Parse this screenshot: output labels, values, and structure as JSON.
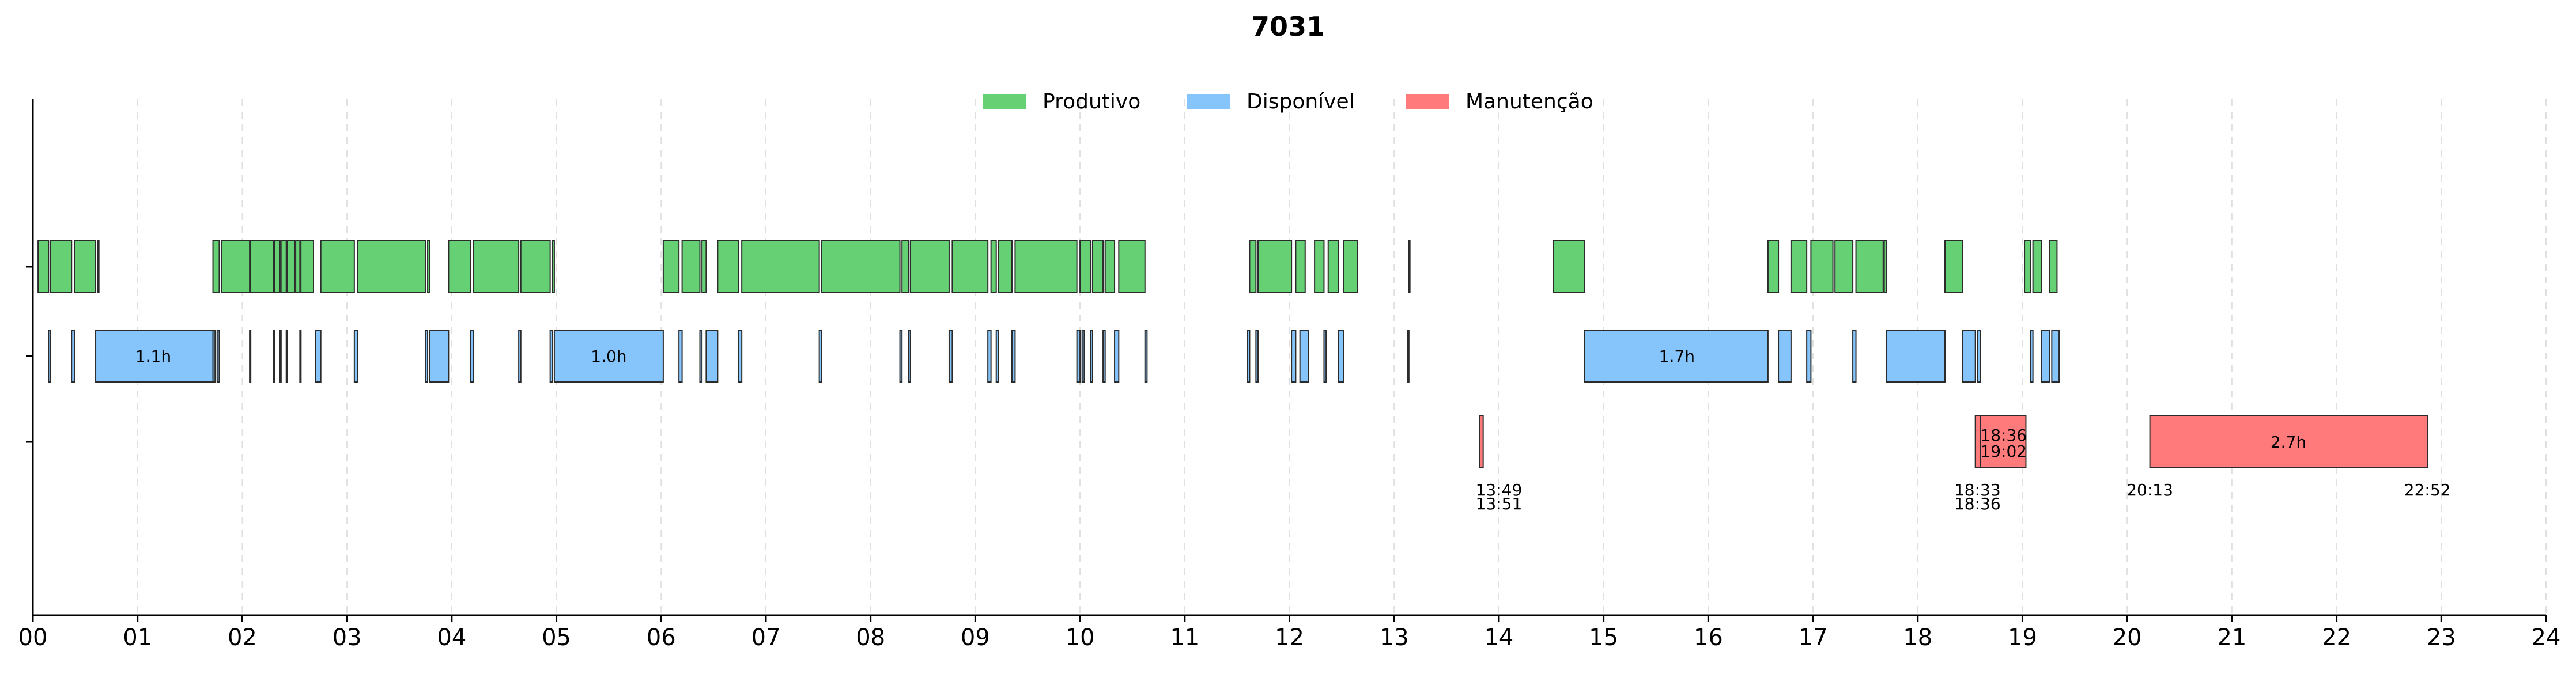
{
  "chart_data": {
    "type": "timeline",
    "title": "7031",
    "xlim": [
      0,
      24
    ],
    "x_ticks": [
      "00",
      "01",
      "02",
      "03",
      "04",
      "05",
      "06",
      "07",
      "08",
      "09",
      "10",
      "11",
      "12",
      "13",
      "14",
      "15",
      "16",
      "17",
      "18",
      "19",
      "20",
      "21",
      "22",
      "23",
      "24"
    ],
    "grid": "vertical dashed",
    "legend": {
      "placement": "top-center",
      "entries": [
        {
          "label": "Produtivo",
          "color": "#66d174"
        },
        {
          "label": "Disponível",
          "color": "#86c5fb"
        },
        {
          "label": "Manutenção",
          "color": "#ff7b7b"
        }
      ]
    },
    "rows": [
      {
        "state": "Produtivo",
        "color": "#66d174",
        "segments": [
          [
            0.05,
            0.15
          ],
          [
            0.17,
            0.37
          ],
          [
            0.4,
            0.6
          ],
          [
            0.62,
            0.63
          ],
          [
            1.72,
            1.78
          ],
          [
            1.8,
            2.07
          ],
          [
            2.08,
            2.3
          ],
          [
            2.31,
            2.36
          ],
          [
            2.37,
            2.42
          ],
          [
            2.43,
            2.5
          ],
          [
            2.51,
            2.55
          ],
          [
            2.56,
            2.68
          ],
          [
            2.75,
            3.07
          ],
          [
            3.1,
            3.75
          ],
          [
            3.77,
            3.79
          ],
          [
            3.97,
            4.18
          ],
          [
            4.21,
            4.64
          ],
          [
            4.66,
            4.94
          ],
          [
            4.96,
            4.98
          ],
          [
            6.02,
            6.17
          ],
          [
            6.2,
            6.37
          ],
          [
            6.39,
            6.43
          ],
          [
            6.54,
            6.74
          ],
          [
            6.77,
            7.51
          ],
          [
            7.53,
            8.28
          ],
          [
            8.3,
            8.36
          ],
          [
            8.38,
            8.75
          ],
          [
            8.78,
            9.12
          ],
          [
            9.15,
            9.2
          ],
          [
            9.22,
            9.35
          ],
          [
            9.38,
            9.97
          ],
          [
            10.0,
            10.1
          ],
          [
            10.12,
            10.22
          ],
          [
            10.24,
            10.33
          ],
          [
            10.37,
            10.62
          ],
          [
            11.62,
            11.68
          ],
          [
            11.7,
            12.02
          ],
          [
            12.06,
            12.15
          ],
          [
            12.24,
            12.33
          ],
          [
            12.37,
            12.47
          ],
          [
            12.52,
            12.65
          ],
          [
            13.14,
            13.15
          ],
          [
            14.52,
            14.82
          ],
          [
            16.57,
            16.67
          ],
          [
            16.79,
            16.94
          ],
          [
            16.98,
            17.19
          ],
          [
            17.21,
            17.38
          ],
          [
            17.41,
            17.67
          ],
          [
            17.68,
            17.7
          ],
          [
            18.26,
            18.43
          ],
          [
            19.02,
            19.08
          ],
          [
            19.1,
            19.18
          ],
          [
            19.26,
            19.33
          ]
        ],
        "labels": []
      },
      {
        "state": "Disponível",
        "color": "#86c5fb",
        "segments": [
          [
            0.15,
            0.17
          ],
          [
            0.37,
            0.4
          ],
          [
            0.6,
            1.72
          ],
          [
            1.72,
            1.74
          ],
          [
            1.76,
            1.78
          ],
          [
            2.07,
            2.08
          ],
          [
            2.3,
            2.31
          ],
          [
            2.36,
            2.37
          ],
          [
            2.42,
            2.43
          ],
          [
            2.55,
            2.56
          ],
          [
            2.7,
            2.75
          ],
          [
            3.07,
            3.1
          ],
          [
            3.75,
            3.77
          ],
          [
            3.79,
            3.97
          ],
          [
            4.18,
            4.21
          ],
          [
            4.64,
            4.66
          ],
          [
            4.94,
            4.96
          ],
          [
            4.98,
            6.02
          ],
          [
            6.17,
            6.2
          ],
          [
            6.37,
            6.39
          ],
          [
            6.43,
            6.54
          ],
          [
            6.74,
            6.77
          ],
          [
            7.51,
            7.53
          ],
          [
            8.28,
            8.3
          ],
          [
            8.36,
            8.38
          ],
          [
            8.75,
            8.78
          ],
          [
            9.12,
            9.15
          ],
          [
            9.2,
            9.22
          ],
          [
            9.35,
            9.38
          ],
          [
            9.97,
            10.0
          ],
          [
            10.02,
            10.04
          ],
          [
            10.1,
            10.12
          ],
          [
            10.22,
            10.24
          ],
          [
            10.33,
            10.37
          ],
          [
            10.62,
            10.64
          ],
          [
            11.6,
            11.62
          ],
          [
            11.68,
            11.7
          ],
          [
            12.02,
            12.06
          ],
          [
            12.1,
            12.18
          ],
          [
            12.33,
            12.35
          ],
          [
            12.47,
            12.52
          ],
          [
            13.13,
            13.14
          ],
          [
            14.82,
            16.57
          ],
          [
            16.67,
            16.79
          ],
          [
            16.94,
            16.98
          ],
          [
            17.38,
            17.41
          ],
          [
            17.7,
            18.26
          ],
          [
            18.43,
            18.55
          ],
          [
            18.57,
            18.6
          ],
          [
            19.08,
            19.1
          ],
          [
            19.18,
            19.26
          ],
          [
            19.28,
            19.35
          ]
        ],
        "labels": [
          {
            "x": 1.15,
            "text": "1.1h"
          },
          {
            "x": 5.5,
            "text": "1.0h"
          },
          {
            "x": 15.7,
            "text": "1.7h"
          }
        ]
      },
      {
        "state": "Manutenção",
        "color": "#ff7b7b",
        "segments": [
          [
            13.817,
            13.85
          ],
          [
            18.55,
            18.6
          ],
          [
            18.6,
            19.033
          ],
          [
            20.217,
            22.867
          ]
        ],
        "labels": [
          {
            "x": 21.54,
            "text": "2.7h",
            "pos": "inside"
          },
          {
            "x": 14.0,
            "text": "13:49",
            "pos": "below1",
            "anchorSeg": 0
          },
          {
            "x": 14.0,
            "text": "13:51",
            "pos": "below2",
            "anchorSeg": 0
          },
          {
            "x": 18.82,
            "text": "18:36",
            "pos": "inside1"
          },
          {
            "x": 18.82,
            "text": "19:02",
            "pos": "inside2"
          },
          {
            "x": 18.57,
            "text": "18:33",
            "pos": "below1"
          },
          {
            "x": 18.57,
            "text": "18:36",
            "pos": "below2"
          },
          {
            "x": 20.217,
            "text": "20:13",
            "pos": "below1"
          },
          {
            "x": 22.867,
            "text": "22:52",
            "pos": "below1"
          }
        ]
      }
    ]
  }
}
